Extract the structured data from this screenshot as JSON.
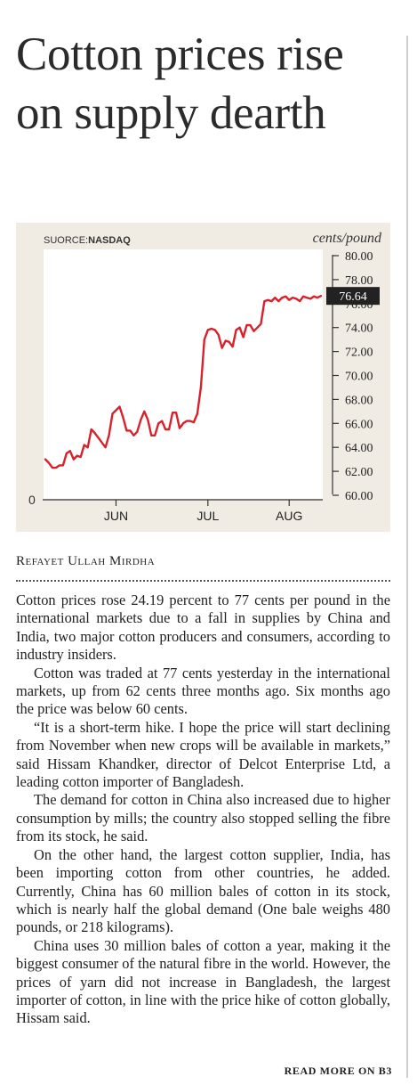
{
  "headline": "Cotton prices rise on supply dearth",
  "byline": "Refayet Ullah Mirdha",
  "chart_data": {
    "type": "line",
    "source_label": "SUORCE:",
    "source_name": "NASDAQ",
    "unit": "cents/pound",
    "ylim": [
      60,
      80
    ],
    "y_ticks": [
      "80.00",
      "78.00",
      "76.00",
      "74.00",
      "72.00",
      "70.00",
      "68.00",
      "66.00",
      "64.00",
      "62.00",
      "60.00"
    ],
    "y_tick_values": [
      80,
      78,
      76,
      74,
      72,
      70,
      68,
      66,
      64,
      62,
      60
    ],
    "zero_label": "0",
    "x_ticks": [
      {
        "label": "JUN",
        "x": 20
      },
      {
        "label": "JUL",
        "x": 46
      },
      {
        "label": "AUG",
        "x": 69
      }
    ],
    "last_value_label": "76.64",
    "last_value": 76.64,
    "line_color": "#d8212a",
    "series": [
      {
        "x": [
          0,
          1,
          2,
          3,
          4,
          5,
          6,
          7,
          8,
          9,
          10,
          11,
          12,
          13,
          14,
          15,
          16,
          17,
          18,
          19,
          20,
          21,
          22,
          23,
          24,
          25,
          26,
          27,
          28,
          29,
          30,
          31,
          32,
          33,
          34,
          35,
          36,
          37,
          38,
          39,
          40,
          41,
          42,
          43,
          44,
          45,
          46,
          47,
          48,
          49,
          50,
          51,
          52,
          53,
          54,
          55,
          56,
          57,
          58,
          59,
          60,
          61,
          62,
          63,
          64,
          65,
          66,
          67,
          68,
          69,
          70,
          71,
          72,
          73,
          74,
          75,
          76,
          77,
          78
        ],
        "y": [
          63.0,
          62.7,
          62.3,
          62.3,
          62.5,
          62.5,
          63.5,
          63.7,
          63.0,
          63.3,
          63.2,
          64.2,
          64.0,
          65.5,
          65.2,
          64.8,
          64.4,
          64.0,
          65.0,
          66.8,
          67.1,
          67.4,
          66.5,
          65.4,
          65.4,
          65.0,
          65.3,
          66.3,
          67.0,
          66.3,
          65.0,
          65.0,
          66.0,
          66.2,
          65.5,
          65.5,
          66.9,
          66.9,
          65.6,
          66.0,
          66.2,
          66.2,
          66.1,
          66.8,
          69.0,
          73.0,
          73.8,
          73.9,
          73.8,
          73.4,
          72.3,
          72.9,
          72.8,
          72.4,
          73.8,
          74.0,
          73.2,
          74.2,
          74.2,
          73.7,
          74.0,
          74.3,
          76.2,
          76.3,
          76.2,
          76.5,
          76.2,
          76.5,
          76.6,
          76.3,
          76.5,
          76.4,
          76.2,
          76.6,
          76.5,
          76.4,
          76.6,
          76.5,
          76.64
        ]
      }
    ]
  },
  "article": [
    "Cotton prices rose 24.19 percent to 77 cents per pound in the international markets due to a fall in supplies by China and India, two major cotton producers and consumers, according to industry insiders.",
    "Cotton was traded at 77 cents yesterday in the international markets, up from 62 cents three months ago. Six months ago the price was below 60 cents.",
    "“It is a short-term hike. I hope the price will start declining from November when new crops will be available in markets,” said Hissam Khandker, director of Delcot Enterprise Ltd, a leading cotton importer of Bangladesh.",
    "The demand for cotton in China also increased due to higher consumption by mills; the country also stopped selling the fibre from its stock, he said.",
    "On the other hand, the largest cotton supplier, India, has been importing cotton from other countries, he added. Currently, China has 60 million bales of cotton in its stock, which is nearly half the global demand (One bale weighs 480 pounds, or 218 kilograms).",
    "China uses 30 million bales of cotton a year, making it the biggest consumer of the natural fibre in the world. However, the prices of yarn did not increase in Bangladesh, the largest importer of cotton, in line with the price hike of cotton globally, Hissam said."
  ],
  "read_more": "READ MORE ON B3"
}
